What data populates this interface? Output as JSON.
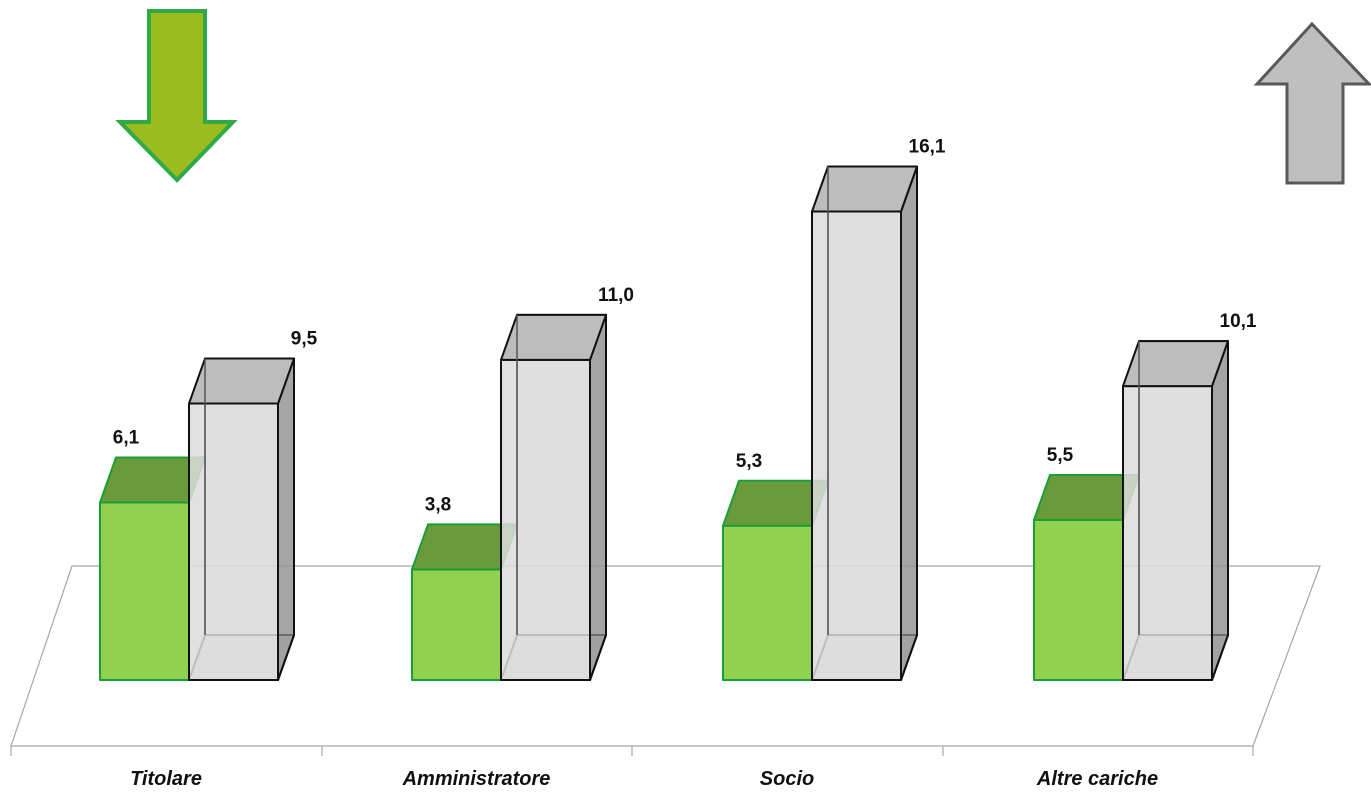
{
  "chart_data": {
    "type": "bar",
    "categories": [
      "Titolare",
      "Amministratore",
      "Socio",
      "Altre cariche"
    ],
    "series": [
      {
        "values": [
          6.1,
          3.8,
          5.3,
          5.5
        ],
        "value_labels": [
          "6,1",
          "3,8",
          "5,3",
          "5,5"
        ],
        "color": "#92d050",
        "border": "#1a9e3a"
      },
      {
        "values": [
          9.5,
          11.0,
          16.1,
          10.1
        ],
        "value_labels": [
          "9,5",
          "11,0",
          "16,1",
          "10,1"
        ],
        "color": "#d9d9d9",
        "border": "#111111"
      }
    ],
    "style": "3d-clustered",
    "grid": false,
    "legend": "none"
  },
  "indicators": [
    {
      "name": "down-arrow-icon",
      "color": "#9bbb1f",
      "border": "#2eaa47"
    },
    {
      "name": "up-arrow-icon",
      "color": "#bfbfbf",
      "border": "#595959"
    }
  ]
}
